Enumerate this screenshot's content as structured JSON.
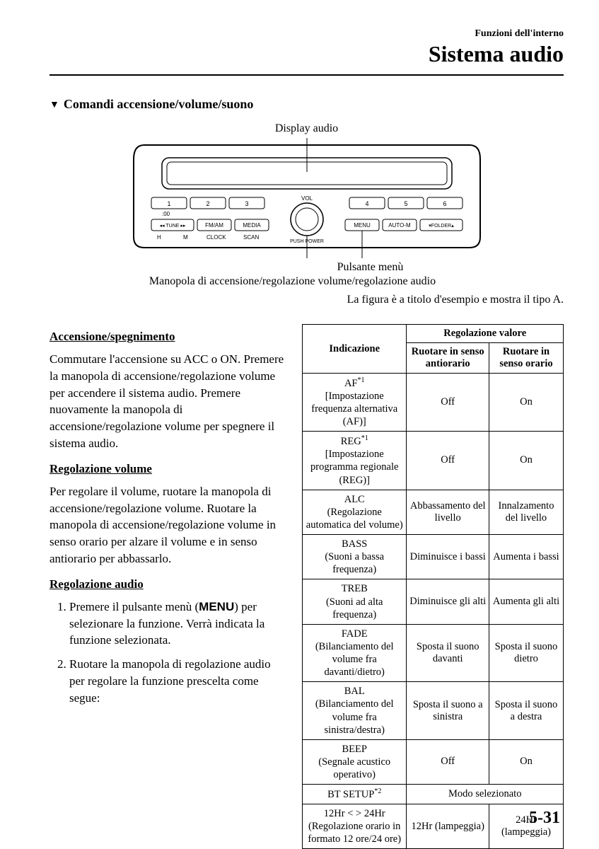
{
  "header": {
    "small": "Funzioni dell'interno",
    "large": "Sistema audio"
  },
  "section_title": "Comandi accensione/volume/suono",
  "diagram": {
    "top_label": "Display audio",
    "btn_1": "1",
    "btn_2": "2",
    "btn_3": "3",
    "btn_4": "4",
    "btn_5": "5",
    "btn_6": "6",
    "btn_00": ":00",
    "btn_tune": "◂◂ TUNE ▸▸",
    "btn_fmam": "FM/AM",
    "btn_media": "MEDIA",
    "btn_menu": "MENU",
    "btn_autom": "AUTO-M",
    "btn_folder": "▾FOLDER▴",
    "lbl_h": "H",
    "lbl_m": "M",
    "lbl_clock": "CLOCK",
    "lbl_scan": "SCAN",
    "lbl_vol": "VOL",
    "lbl_push": "PUSH POWER",
    "mid_label": "Pulsante menù",
    "knob_label": "Manopola di accensione/regolazione volume/regolazione audio",
    "caption": "La figura è a titolo d'esempio e mostra il tipo A."
  },
  "left": {
    "h1": "Accensione/spegnimento",
    "p1": "Commutare l'accensione su ACC o ON. Premere la manopola di accensione/regolazione volume per accendere il sistema audio. Premere nuovamente la manopola di accensione/regolazione volume per spegnere il sistema audio.",
    "h2": "Regolazione volume",
    "p2": "Per regolare il volume, ruotare la manopola di accensione/regolazione volume. Ruotare la manopola di accensione/regolazione volume in senso orario per alzare il volume e in senso antiorario per abbassarlo.",
    "h3": "Regolazione audio",
    "li1a": "Premere il pulsante menù (",
    "li1b": "MENU",
    "li1c": ") per selezionare la funzione. Verrà indicata la funzione selezionata.",
    "li2": "Ruotare la manopola di regolazione audio per regolare la funzione prescelta come segue:"
  },
  "table": {
    "col1": "Indicazione",
    "col_val": "Regolazione valore",
    "col2": "Ruotare in senso antiorario",
    "col3": "Ruotare in senso orario",
    "rows": [
      {
        "ind_html": "AF<span class='sup'>*1</span><br>[Impostazione frequenza alternativa (AF)]",
        "a": "Off",
        "b": "On"
      },
      {
        "ind_html": "REG<span class='sup'>*1</span><br>[Impostazione programma regionale (REG)]",
        "a": "Off",
        "b": "On"
      },
      {
        "ind_html": "ALC<br>(Regolazione automatica del volume)",
        "a": "Abbassamento del livello",
        "b": "Innalzamento del livello"
      },
      {
        "ind_html": "BASS<br>(Suoni a bassa frequenza)",
        "a": "Diminuisce i bassi",
        "b": "Aumenta i bassi"
      },
      {
        "ind_html": "TREB<br>(Suoni ad alta frequenza)",
        "a": "Diminuisce gli alti",
        "b": "Aumenta gli alti"
      },
      {
        "ind_html": "FADE<br>(Bilanciamento del volume fra davanti/dietro)",
        "a": "Sposta il suono davanti",
        "b": "Sposta il suono dietro"
      },
      {
        "ind_html": "BAL<br>(Bilanciamento del volume fra sinistra/destra)",
        "a": "Sposta il suono a sinistra",
        "b": "Sposta il suono a destra"
      },
      {
        "ind_html": "BEEP<br>(Segnale acustico operativo)",
        "a": "Off",
        "b": "On"
      },
      {
        "ind_html": "BT SETUP<span class='sup'>*2</span>",
        "span": "Modo selezionato"
      },
      {
        "ind_html": "12Hr &lt; &gt; 24Hr<br>(Regolazione orario in formato 12 ore/24 ore)",
        "a": "12Hr (lampeggia)",
        "b": "24Hr (lampeggia)"
      }
    ]
  },
  "page_num": "5-31"
}
